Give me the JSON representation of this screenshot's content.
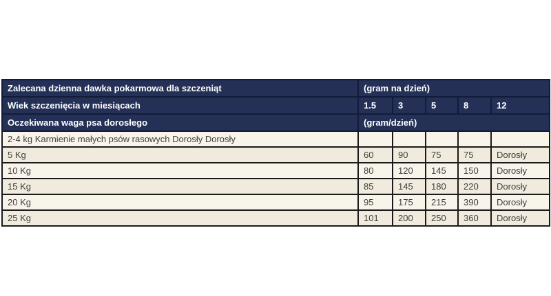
{
  "colors": {
    "header_bg": "#253057",
    "header_border": "#121b3a",
    "body_border": "#1a1a1a",
    "row_light": "#f8f4ea",
    "row_dark": "#f1ebde",
    "header_text": "#ffffff",
    "body_text": "#3e3e3e"
  },
  "table": {
    "header": [
      {
        "label": "Zalecana dzienna dawka pokarmowa dla szczeniąt",
        "span": "(gram na dzień)"
      },
      {
        "label": "Wiek szczenięcia w miesiącach",
        "cols": [
          "1.5",
          "3",
          "5",
          "8",
          "12"
        ]
      },
      {
        "label": "Oczekiwana waga psa dorosłego",
        "span": "(gram/dzień)"
      }
    ],
    "rows": [
      {
        "label": "2-4 kg Karmienie małych psów rasowych Dorosły Dorosły",
        "values": [
          "",
          "",
          "",
          "",
          ""
        ]
      },
      {
        "label": "5 Kg",
        "values": [
          "60",
          "90",
          "75",
          "75",
          "Dorosły"
        ]
      },
      {
        "label": "10 Kg",
        "values": [
          "80",
          "120",
          "145",
          "150",
          "Dorosły"
        ]
      },
      {
        "label": "15 Kg",
        "values": [
          "85",
          "145",
          "180",
          "220",
          "Dorosły"
        ]
      },
      {
        "label": "20 Kg",
        "values": [
          "95",
          "175",
          "215",
          "390",
          "Dorosły"
        ]
      },
      {
        "label": "25 Kg",
        "values": [
          "101",
          "200",
          "250",
          "360",
          "Dorosły"
        ]
      }
    ]
  },
  "chart_data": {
    "type": "table",
    "title": "Zalecana dzienna dawka pokarmowa dla szczeniąt (gram na dzień)",
    "columns": [
      "Oczekiwana waga psa dorosłego",
      "1.5",
      "3",
      "5",
      "8",
      "12"
    ],
    "column_group_label": "Wiek szczenięcia w miesiącach",
    "unit": "(gram/dzień)",
    "rows": [
      [
        "2-4 kg Karmienie małych psów rasowych Dorosły Dorosły",
        "",
        "",
        "",
        "",
        ""
      ],
      [
        "5 Kg",
        60,
        90,
        75,
        75,
        "Dorosły"
      ],
      [
        "10 Kg",
        80,
        120,
        145,
        150,
        "Dorosły"
      ],
      [
        "15 Kg",
        85,
        145,
        180,
        220,
        "Dorosły"
      ],
      [
        "20 Kg",
        95,
        175,
        215,
        390,
        "Dorosły"
      ],
      [
        "25 Kg",
        101,
        200,
        250,
        360,
        "Dorosły"
      ]
    ]
  }
}
